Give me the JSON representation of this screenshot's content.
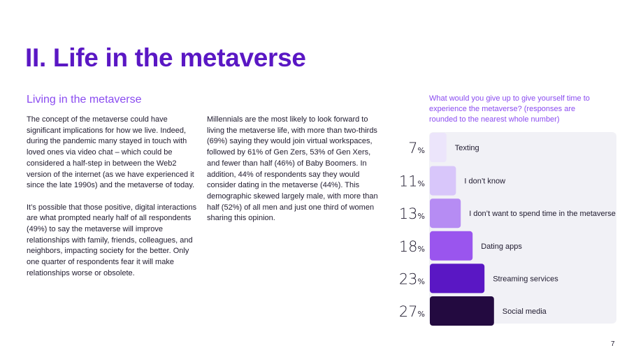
{
  "title": "II. Life in the metaverse",
  "subtitle": "Living in the metaverse",
  "col1": [
    "The concept of the metaverse could have significant implications for how we live. Indeed, during the pandemic many stayed in touch with loved ones via video chat – which could be considered a half-step in between the Web2 version of the internet (as we have experienced it since the late 1990s) and the metaverse of today.",
    "It’s possible that those positive, digital interactions are what prompted nearly half of all respondents (49%) to say the metaverse will improve relationships with family, friends, colleagues, and neighbors, impacting society for the better. Only one quarter of respondents fear it will make relationships worse or obsolete."
  ],
  "col2": [
    "Millennials are the most likely to look forward to living the metaverse life, with more than two-thirds (69%) saying they would join virtual workspaces, followed by 61% of Gen Zers, 53% of Gen Xers, and fewer than half (46%) of Baby Boomers. In addition, 44% of respondents say they would consider dating in the metaverse (44%). This demographic skewed largely male, with more than half (52%) of all men and just one third of women sharing this opinion."
  ],
  "chart_question": "What would you give up to give yourself time to experience the metaverse? (responses are rounded to the nearest whole number)",
  "chart_data": {
    "type": "bar",
    "orientation": "horizontal",
    "title": "What would you give up to give yourself time to experience the metaverse? (responses are rounded to the nearest whole number)",
    "unit": "%",
    "categories": [
      "Texting",
      "I don’t know",
      "I don’t want to spend time in the metaverse",
      "Dating apps",
      "Streaming services",
      "Social media"
    ],
    "values": [
      7,
      11,
      13,
      18,
      23,
      27
    ],
    "colors": [
      "#ece5fb",
      "#d8c6fa",
      "#b68cf3",
      "#9a55ee",
      "#5a17c4",
      "#230a40"
    ]
  },
  "page_number": "7"
}
